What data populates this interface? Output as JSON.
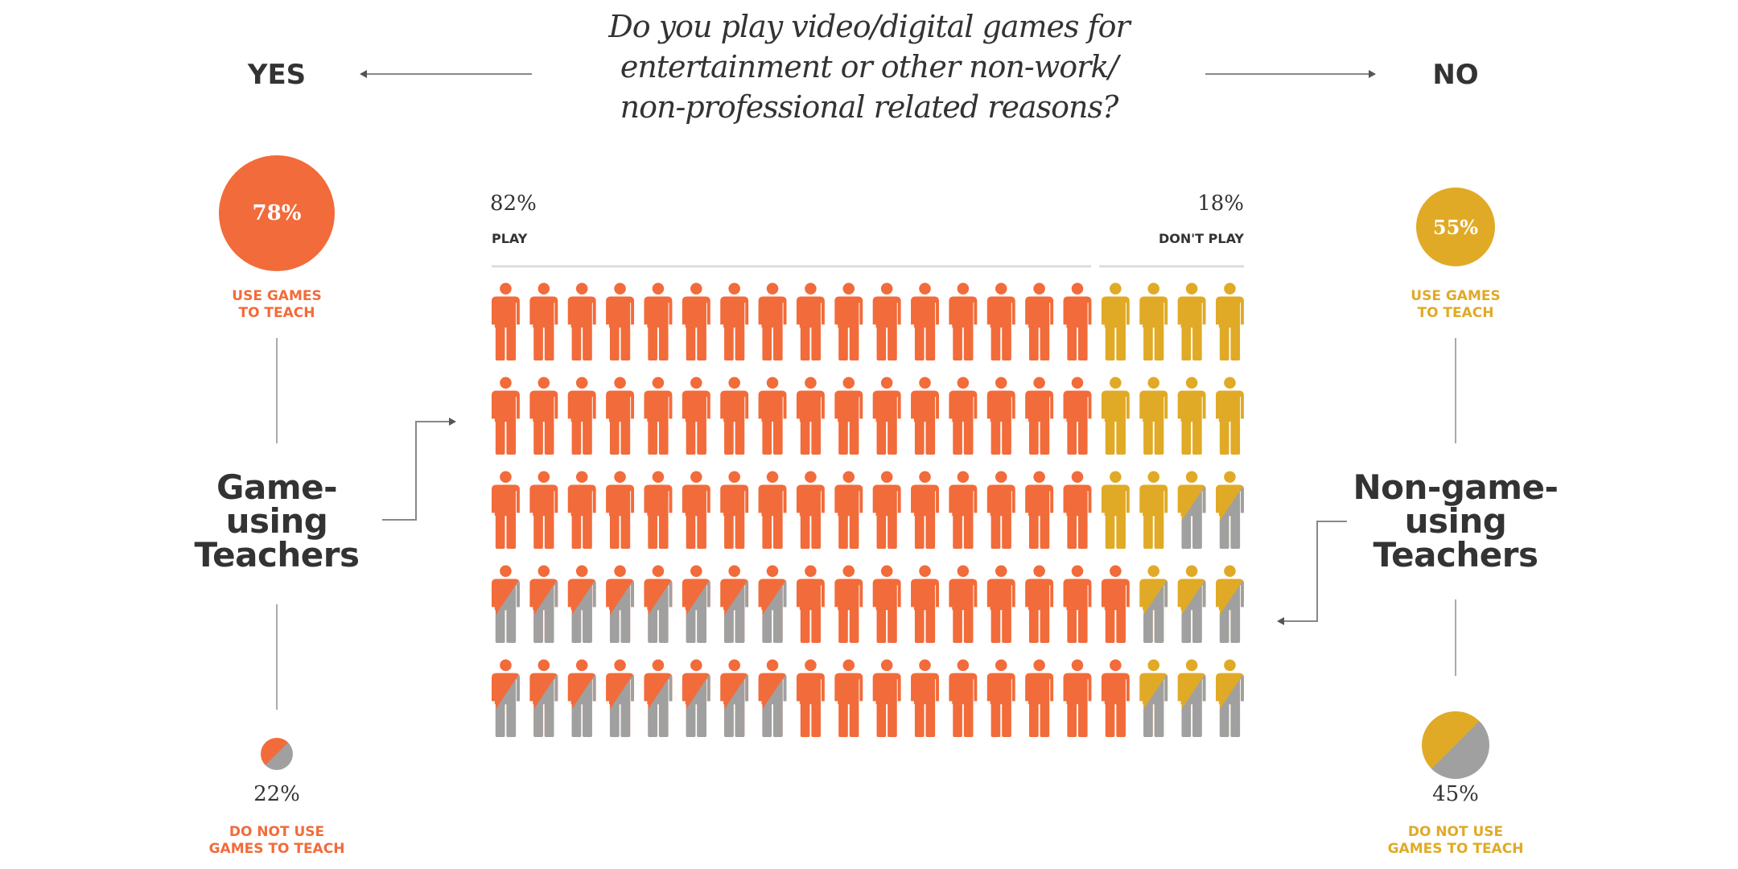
{
  "question": [
    "Do you play video/digital games for",
    "entertainment or other non-work/",
    "non-professional related reasons?"
  ],
  "yes_label": "YES",
  "no_label": "NO",
  "colors": {
    "players": "#f26b3a",
    "non_players": "#e0aa26",
    "not_using": "#a0a0a0",
    "text": "#333333",
    "line": "#aaaaaa"
  },
  "left": {
    "use_pct": "78%",
    "use_label": [
      "USE GAMES",
      "TO TEACH"
    ],
    "group_label": [
      "Game-",
      "using",
      "Teachers"
    ],
    "not_use_pct": "22%",
    "not_use_label": [
      "DO NOT USE",
      "GAMES TO TEACH"
    ]
  },
  "right": {
    "use_pct": "55%",
    "use_label": [
      "USE GAMES",
      "TO TEACH"
    ],
    "group_label": [
      "Non-game-",
      "using",
      "Teachers"
    ],
    "not_use_pct": "45%",
    "not_use_label": [
      "DO NOT USE",
      "GAMES TO TEACH"
    ]
  },
  "chart_data": {
    "type": "isotype",
    "title": "Do you play video/digital games for entertainment or other non-work/non-professional related reasons?",
    "categories": [
      "PLAY",
      "DON'T PLAY"
    ],
    "values": [
      82,
      18
    ],
    "value_labels": [
      "82%",
      "18%"
    ],
    "legend_codes": {
      "o": "play, use games",
      "og": "play, do not use games",
      "y": "don't play, use games",
      "yg": "don't play, do not use games"
    },
    "grid": [
      [
        "o",
        "o",
        "o",
        "o",
        "o",
        "o",
        "o",
        "o",
        "o",
        "o",
        "o",
        "o",
        "o",
        "o",
        "o",
        "o",
        "y",
        "y",
        "y",
        "y"
      ],
      [
        "o",
        "o",
        "o",
        "o",
        "o",
        "o",
        "o",
        "o",
        "o",
        "o",
        "o",
        "o",
        "o",
        "o",
        "o",
        "o",
        "y",
        "y",
        "y",
        "y"
      ],
      [
        "o",
        "o",
        "o",
        "o",
        "o",
        "o",
        "o",
        "o",
        "o",
        "o",
        "o",
        "o",
        "o",
        "o",
        "o",
        "o",
        "y",
        "y",
        "yg",
        "yg"
      ],
      [
        "og",
        "og",
        "og",
        "og",
        "og",
        "og",
        "og",
        "og",
        "o",
        "o",
        "o",
        "o",
        "o",
        "o",
        "o",
        "o",
        "o",
        "yg",
        "yg",
        "yg"
      ],
      [
        "og",
        "og",
        "og",
        "og",
        "og",
        "og",
        "og",
        "og",
        "o",
        "o",
        "o",
        "o",
        "o",
        "o",
        "o",
        "o",
        "o",
        "yg",
        "yg",
        "yg"
      ]
    ],
    "subgroups": {
      "game_using": {
        "use": 78,
        "not_use": 22
      },
      "non_game_using": {
        "use": 55,
        "not_use": 45
      }
    }
  }
}
